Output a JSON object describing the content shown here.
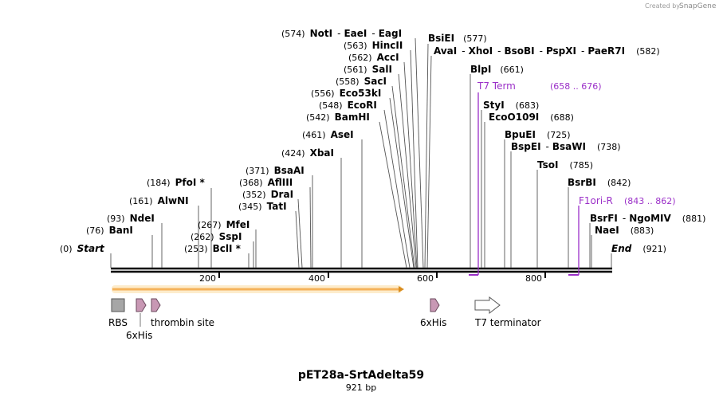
{
  "credit": "Created by",
  "credit_brand": "SnapGene",
  "title": "pET28a-SrtAdelta59",
  "subtitle": "921 bp",
  "colors": {
    "primer": "#9b30c8",
    "orf_fill": "#f5b25a",
    "orf_stroke": "#a77a2a",
    "his": "#c898b4",
    "his_stroke": "#6b4a5e",
    "rbs": "#a6a6a6"
  },
  "sites": [
    {
      "row": "left",
      "items": [
        {
          "pos": "(0)",
          "names": [
            "Start"
          ],
          "italic": true
        }
      ]
    },
    {
      "row": "left",
      "items": [
        {
          "pos": "(76)",
          "names": [
            "BanI"
          ]
        }
      ]
    },
    {
      "row": "left",
      "items": [
        {
          "pos": "(93)",
          "names": [
            "NdeI"
          ]
        }
      ]
    },
    {
      "row": "left",
      "items": [
        {
          "pos": "(161)",
          "names": [
            "AlwNI"
          ]
        }
      ]
    },
    {
      "row": "left",
      "items": [
        {
          "pos": "(184)",
          "names": [
            "PfoI *"
          ]
        }
      ]
    },
    {
      "row": "left",
      "items": [
        {
          "pos": "(253)",
          "names": [
            "BclI *"
          ]
        }
      ]
    },
    {
      "row": "left",
      "items": [
        {
          "pos": "(262)",
          "names": [
            "SspI"
          ]
        }
      ]
    },
    {
      "row": "left",
      "items": [
        {
          "pos": "(267)",
          "names": [
            "MfeI"
          ]
        }
      ]
    },
    {
      "row": "left",
      "items": [
        {
          "pos": "(345)",
          "names": [
            "TatI"
          ]
        }
      ]
    },
    {
      "row": "left",
      "items": [
        {
          "pos": "(352)",
          "names": [
            "DraI"
          ]
        }
      ]
    },
    {
      "row": "left",
      "items": [
        {
          "pos": "(368)",
          "names": [
            "AflIII"
          ]
        }
      ]
    },
    {
      "row": "left",
      "items": [
        {
          "pos": "(371)",
          "names": [
            "BsaAI"
          ]
        }
      ]
    },
    {
      "row": "left",
      "items": [
        {
          "pos": "(424)",
          "names": [
            "XbaI"
          ]
        }
      ]
    },
    {
      "row": "left",
      "items": [
        {
          "pos": "(461)",
          "names": [
            "AseI"
          ]
        }
      ]
    },
    {
      "row": "left",
      "items": [
        {
          "pos": "(542)",
          "names": [
            "BamHI"
          ]
        }
      ]
    },
    {
      "row": "left",
      "items": [
        {
          "pos": "(548)",
          "names": [
            "EcoRI"
          ]
        }
      ]
    },
    {
      "row": "left",
      "items": [
        {
          "pos": "(556)",
          "names": [
            "Eco53kI"
          ]
        }
      ]
    },
    {
      "row": "left",
      "items": [
        {
          "pos": "(558)",
          "names": [
            "SacI"
          ]
        }
      ]
    },
    {
      "row": "left",
      "items": [
        {
          "pos": "(561)",
          "names": [
            "SalI"
          ]
        }
      ]
    },
    {
      "row": "left",
      "items": [
        {
          "pos": "(562)",
          "names": [
            "AccI"
          ]
        }
      ]
    },
    {
      "row": "left",
      "items": [
        {
          "pos": "(563)",
          "names": [
            "HincII"
          ]
        }
      ]
    },
    {
      "row": "left",
      "items": [
        {
          "pos": "(574)",
          "names": [
            "NotI",
            "EaeI",
            "EagI"
          ]
        }
      ]
    },
    {
      "row": "right",
      "items": [
        {
          "pos": "(577)",
          "names": [
            "BsiEI"
          ]
        }
      ]
    },
    {
      "row": "right",
      "items": [
        {
          "pos": "(582)",
          "names": [
            "AvaI",
            "XhoI",
            "BsoBI",
            "PspXI",
            "PaeR7I"
          ]
        }
      ]
    },
    {
      "row": "right",
      "items": [
        {
          "pos": "(661)",
          "names": [
            "BlpI"
          ]
        }
      ]
    },
    {
      "row": "right",
      "items": [
        {
          "pos": "(683)",
          "names": [
            "StyI"
          ]
        }
      ]
    },
    {
      "row": "right",
      "items": [
        {
          "pos": "(688)",
          "names": [
            "EcoO109I"
          ]
        }
      ]
    },
    {
      "row": "right",
      "items": [
        {
          "pos": "(725)",
          "names": [
            "BpuEI"
          ]
        }
      ]
    },
    {
      "row": "right",
      "items": [
        {
          "pos": "(738)",
          "names": [
            "BspEI",
            "BsaWI"
          ]
        }
      ]
    },
    {
      "row": "right",
      "items": [
        {
          "pos": "(785)",
          "names": [
            "TsoI"
          ]
        }
      ]
    },
    {
      "row": "right",
      "items": [
        {
          "pos": "(842)",
          "names": [
            "BsrBI"
          ]
        }
      ]
    },
    {
      "row": "right",
      "items": [
        {
          "pos": "(881)",
          "names": [
            "BsrFI",
            "NgoMIV"
          ]
        }
      ]
    },
    {
      "row": "right",
      "items": [
        {
          "pos": "(883)",
          "names": [
            "NaeI"
          ]
        }
      ]
    },
    {
      "row": "right",
      "items": [
        {
          "pos": "(921)",
          "names": [
            "End"
          ],
          "italic": true
        }
      ]
    }
  ],
  "primers": [
    {
      "name": "T7 Term",
      "range": "(658 .. 676)"
    },
    {
      "name": "F1ori-R",
      "range": "(843 .. 862)"
    }
  ],
  "ticks": [
    "200",
    "400",
    "600",
    "800"
  ],
  "features": {
    "rbs": "RBS",
    "his_left": "6xHis",
    "thrombin": "thrombin site",
    "his_right": "6xHis",
    "t7": "T7 terminator"
  }
}
